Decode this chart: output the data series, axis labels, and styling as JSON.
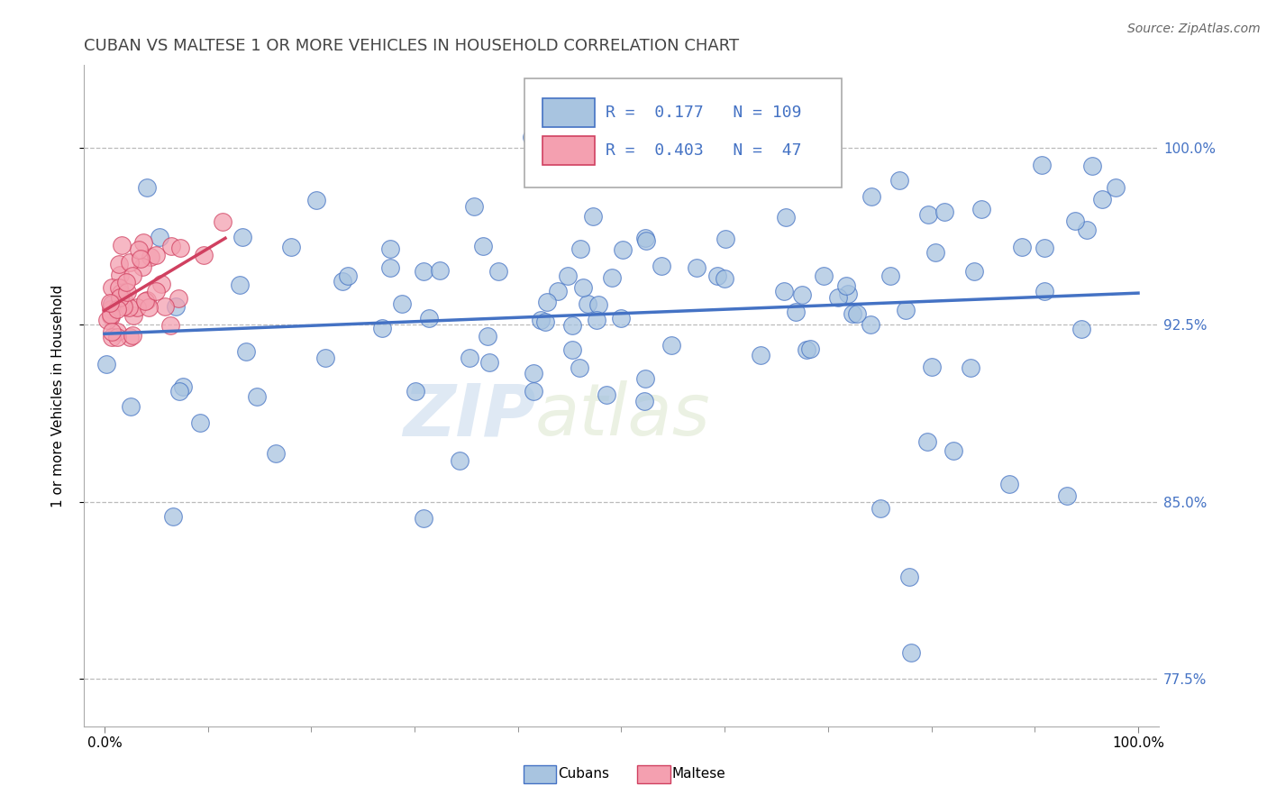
{
  "title": "CUBAN VS MALTESE 1 OR MORE VEHICLES IN HOUSEHOLD CORRELATION CHART",
  "source_text": "Source: ZipAtlas.com",
  "ylabel": "1 or more Vehicles in Household",
  "xlim": [
    -0.02,
    1.02
  ],
  "ylim": [
    0.755,
    1.035
  ],
  "yright_ticks": [
    1.0,
    0.925,
    0.85,
    0.775
  ],
  "yright_labels": [
    "100.0%",
    "92.5%",
    "85.0%",
    "77.5%"
  ],
  "xtick_labels": [
    "0.0%",
    "100.0%"
  ],
  "xtick_positions": [
    0.0,
    1.0
  ],
  "title_fontsize": 13,
  "watermark_text": "ZIPatlas",
  "legend_r_cuban": "0.177",
  "legend_n_cuban": "109",
  "legend_r_maltese": "0.403",
  "legend_n_maltese": "47",
  "cuban_color": "#a8c4e0",
  "maltese_color": "#f4a0b0",
  "cuban_line_color": "#4472c4",
  "maltese_line_color": "#d04060",
  "background_color": "#ffffff",
  "grid_color": "#bbbbbb",
  "title_color": "#444444"
}
